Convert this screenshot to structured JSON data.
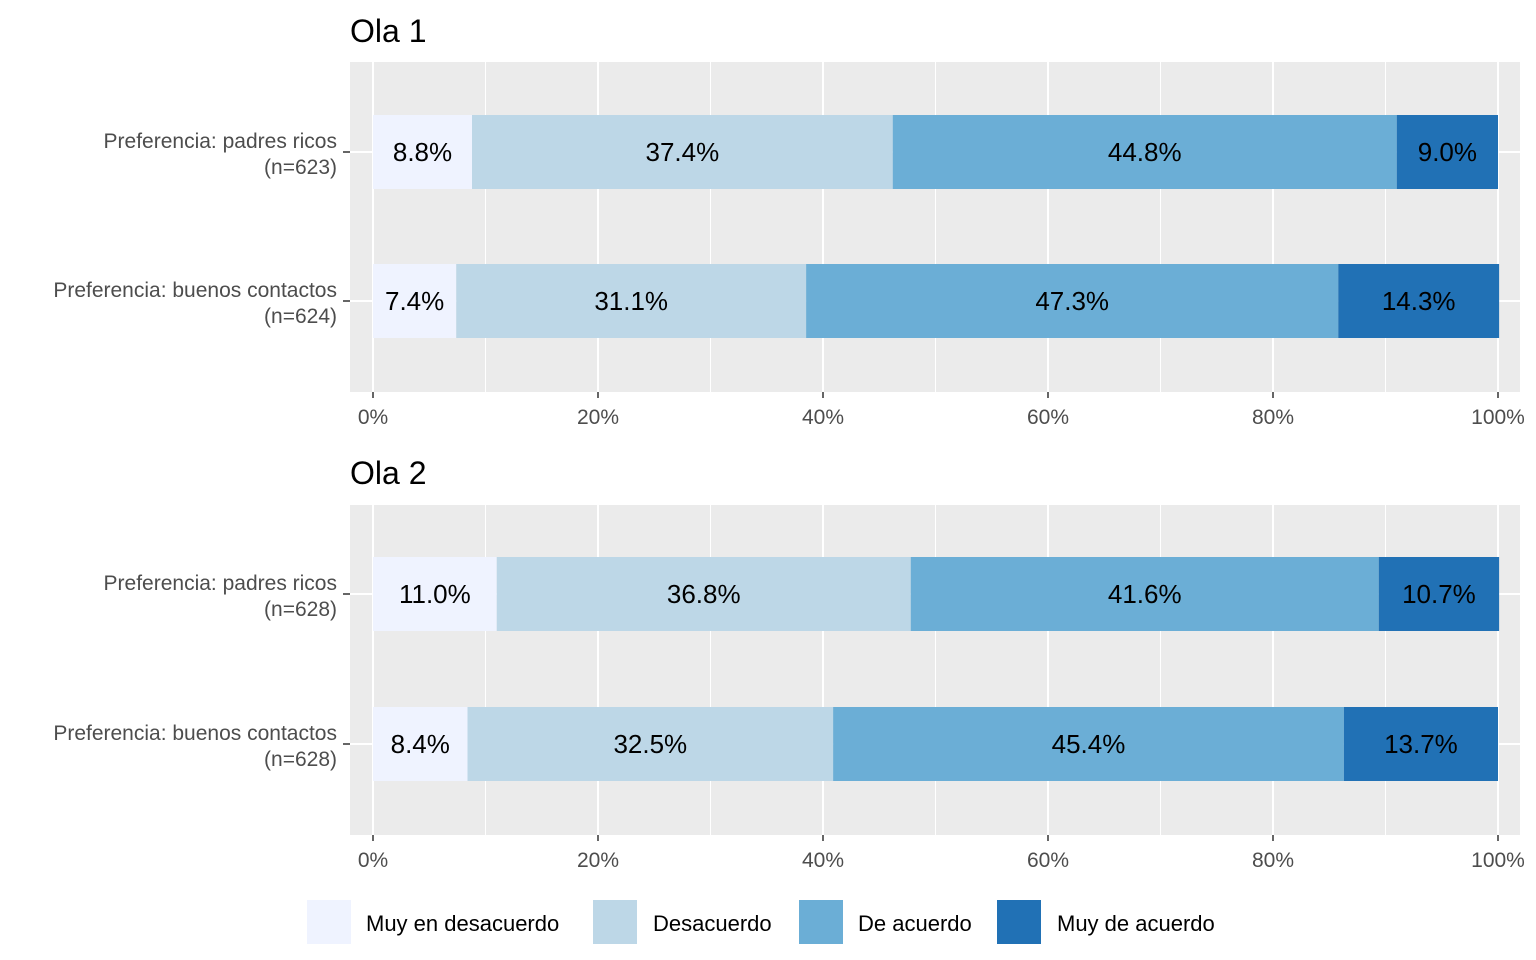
{
  "legend": {
    "items": [
      {
        "label": "Muy en desacuerdo",
        "color": "#EFF3FF"
      },
      {
        "label": "Desacuerdo",
        "color": "#BDD7E7"
      },
      {
        "label": "De acuerdo",
        "color": "#6BAED6"
      },
      {
        "label": "Muy de acuerdo",
        "color": "#2171B5"
      }
    ]
  },
  "chart_data": [
    {
      "type": "bar",
      "orientation": "horizontal",
      "stacked": true,
      "title": "Ola 1",
      "xlim": [
        0,
        100
      ],
      "x_ticks": [
        "0%",
        "20%",
        "40%",
        "60%",
        "80%",
        "100%"
      ],
      "categories": [
        {
          "label": "Preferencia: padres ricos",
          "sublabel": "(n=623)"
        },
        {
          "label": "Preferencia: buenos contactos",
          "sublabel": "(n=624)"
        }
      ],
      "series": [
        {
          "name": "Muy en desacuerdo",
          "values": [
            8.8,
            7.4
          ],
          "labels": [
            "8.8%",
            "7.4%"
          ]
        },
        {
          "name": "Desacuerdo",
          "values": [
            37.4,
            31.1
          ],
          "labels": [
            "37.4%",
            "31.1%"
          ]
        },
        {
          "name": "De acuerdo",
          "values": [
            44.8,
            47.3
          ],
          "labels": [
            "44.8%",
            "47.3%"
          ]
        },
        {
          "name": "Muy de acuerdo",
          "values": [
            9.0,
            14.3
          ],
          "labels": [
            "9.0%",
            "14.3%"
          ]
        }
      ],
      "grid": true
    },
    {
      "type": "bar",
      "orientation": "horizontal",
      "stacked": true,
      "title": "Ola 2",
      "xlim": [
        0,
        100
      ],
      "x_ticks": [
        "0%",
        "20%",
        "40%",
        "60%",
        "80%",
        "100%"
      ],
      "categories": [
        {
          "label": "Preferencia: padres ricos",
          "sublabel": "(n=628)"
        },
        {
          "label": "Preferencia: buenos contactos",
          "sublabel": "(n=628)"
        }
      ],
      "series": [
        {
          "name": "Muy en desacuerdo",
          "values": [
            11.0,
            8.4
          ],
          "labels": [
            "11.0%",
            "8.4%"
          ]
        },
        {
          "name": "Desacuerdo",
          "values": [
            36.8,
            32.5
          ],
          "labels": [
            "36.8%",
            "32.5%"
          ]
        },
        {
          "name": "De acuerdo",
          "values": [
            41.6,
            45.4
          ],
          "labels": [
            "41.6%",
            "45.4%"
          ]
        },
        {
          "name": "Muy de acuerdo",
          "values": [
            10.7,
            13.7
          ],
          "labels": [
            "10.7%",
            "13.7%"
          ]
        }
      ],
      "grid": true
    }
  ]
}
